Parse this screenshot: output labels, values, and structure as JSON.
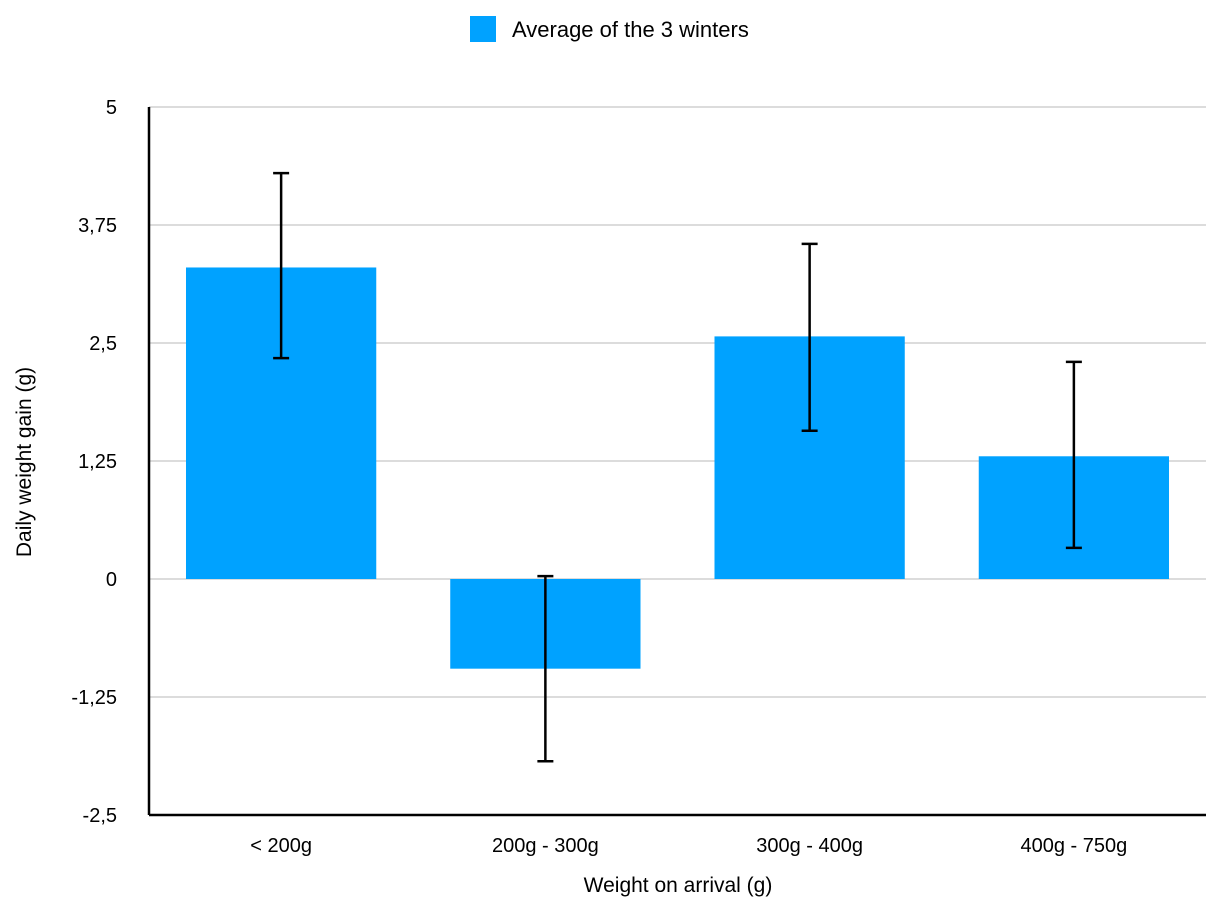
{
  "chart_data": {
    "type": "bar",
    "categories": [
      "< 200g",
      "200g - 300g",
      "300g - 400g",
      "400g - 750g"
    ],
    "series": [
      {
        "name": "Average of the 3 winters",
        "values": [
          3.3,
          -0.95,
          2.57,
          1.3
        ],
        "error_low": [
          2.34,
          -1.93,
          1.57,
          0.33
        ],
        "error_high": [
          4.3,
          0.03,
          3.55,
          2.3
        ],
        "color": "#00a2ff"
      }
    ],
    "xlabel": "Weight on arrival (g)",
    "ylabel": "Daily weight gain (g)",
    "ylim": [
      -2.5,
      5
    ],
    "yticks": [
      "5",
      "3,75",
      "2,5",
      "1,25",
      "0",
      "-1,25",
      "-2,5"
    ],
    "ytick_values": [
      5,
      3.75,
      2.5,
      1.25,
      0,
      -1.25,
      -2.5
    ],
    "grid": true,
    "legend_position": "top-center",
    "axis_color": "#000000",
    "grid_color": "#c7c7c7",
    "errorbar_color": "#000000"
  }
}
